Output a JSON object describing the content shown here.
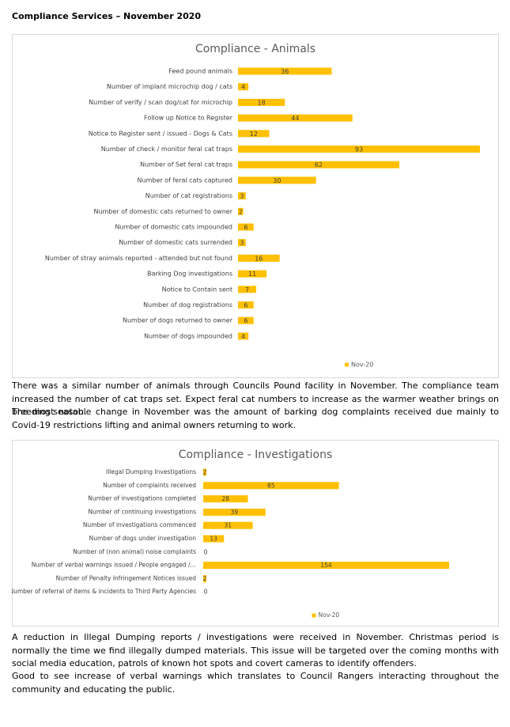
{
  "heading": "Compliance Services – November 2020",
  "chart_data": [
    {
      "type": "bar",
      "orientation": "horizontal",
      "title": "Compliance - Animals",
      "categories": [
        "Feed pound animals",
        "Number of implant microchip dog / cats",
        "Number of verify / scan dog/cat for microchip",
        "Follow up Notice to Register",
        "Notice to Register sent / issued - Dogs & Cats",
        "Number of check / monitor feral cat traps",
        "Number of Set feral cat traps",
        "Number of feral cats captured",
        "Number of cat registrations",
        "Number of domestic cats returned to owner",
        "Number of domestic cats impounded",
        "Number of domestic cats surrended",
        "Number of stray animals reported - attended but not found",
        "Barking Dog investigations",
        "Notice to Contain sent",
        "Number of dog registrations",
        "Number of dogs returned to owner",
        "Number of dogs impounded"
      ],
      "series": [
        {
          "name": "Nov-20",
          "color": "#ffc000",
          "values": [
            36,
            4,
            18,
            44,
            12,
            93,
            62,
            30,
            3,
            2,
            6,
            3,
            16,
            11,
            7,
            6,
            6,
            4
          ]
        }
      ],
      "legend": "bottom"
    },
    {
      "type": "bar",
      "orientation": "horizontal",
      "title": "Compliance - Investigations",
      "categories": [
        "Illegal Dumping Investigations",
        "Number of complaints received",
        "Number of investigations completed",
        "Number of continuing investigations",
        "Number of investigations commenced",
        "Number of dogs under investigation",
        "Number of (non animal) noise complaints",
        "Number of verbal warnings issued  / People engaged /…",
        "Number of Penalty Infringement Notices issued",
        "Number of referral of items & incidents to Third Party Agencies"
      ],
      "series": [
        {
          "name": "Nov-20",
          "color": "#ffc000",
          "values": [
            2,
            85,
            28,
            39,
            31,
            13,
            0,
            154,
            2,
            0
          ]
        }
      ],
      "legend": "bottom"
    }
  ],
  "paragraphs": [
    "There was a similar number of animals through Councils Pound facility in November.  The compliance team increased the number of cat traps set. Expect feral cat numbers to increase as the warmer weather brings on breeding season.",
    "The most notable change in November was the amount of barking dog complaints received due mainly to Covid-19 restrictions lifting and animal owners returning to work.",
    "A reduction in Illegal Dumping reports / investigations were received in November. Christmas period is normally the time we find illegally dumped materials. This issue will be targeted over the coming months with social media education, patrols of known hot spots and covert cameras to identify offenders.",
    "Good to see increase of verbal warnings which translates to Council Rangers interacting throughout the community and educating the public."
  ]
}
